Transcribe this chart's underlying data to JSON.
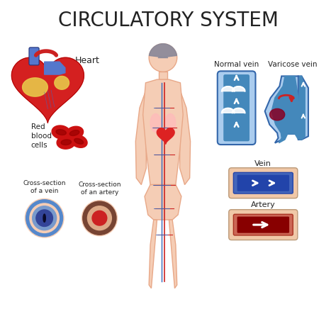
{
  "title": "CIRCULATORY SYSTEM",
  "title_fontsize": 20,
  "background_color": "#ffffff",
  "labels": {
    "heart": "Heart",
    "red_blood_cells": "Red\nblood\ncells",
    "cross_section_vein": "Cross-section\nof a vein",
    "cross_section_artery": "Cross-section\nof an artery",
    "normal_vein": "Normal vein",
    "varicose_vein": "Varicose vein",
    "vein": "Vein",
    "artery": "Artery"
  },
  "colors": {
    "heart_red": "#d42020",
    "heart_dark_red": "#aa0000",
    "heart_blue": "#5577cc",
    "heart_yellow": "#e8c84a",
    "vein_blue": "#5599cc",
    "vein_dark_blue": "#3366bb",
    "vein_light_blue": "#88bbdd",
    "vein_lighter": "#aaccee",
    "artery_red": "#cc2222",
    "artery_dark_red": "#660000",
    "blood_cell_red": "#cc1111",
    "blood_cell_dark": "#990000",
    "body_skin": "#f5cdb5",
    "body_outline": "#e8a888",
    "cross_vein_outer_ring": "#6699cc",
    "cross_vein_skin": "#f5cdb5",
    "cross_vein_blue_outer": "#5588cc",
    "cross_vein_blue_mid": "#7799cc",
    "cross_vein_center": "#334499",
    "cross_artery_skin": "#f5cdb5",
    "cross_artery_brown": "#774433",
    "cross_artery_peach": "#ddaa88",
    "cross_artery_center": "#cc2222",
    "white": "#ffffff",
    "text_dark": "#222222",
    "gray_hair": "#888899",
    "tube_skin": "#f0c8a8",
    "tube_vein_dark": "#2244aa",
    "tube_artery_dark": "#880000",
    "varicose_red": "#cc2222",
    "normal_vein_blue": "#4488bb",
    "normal_vein_light": "#88bbdd"
  }
}
